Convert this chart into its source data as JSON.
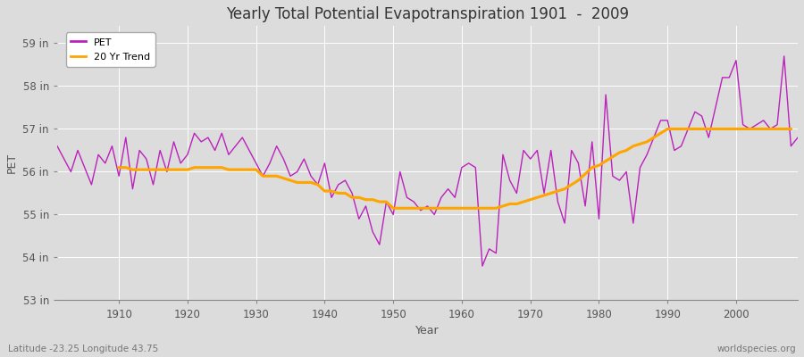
{
  "title": "Yearly Total Potential Evapotranspiration 1901  -  2009",
  "ylabel": "PET",
  "xlabel": "Year",
  "footer_left": "Latitude -23.25 Longitude 43.75",
  "footer_right": "worldspecies.org",
  "pet_color": "#BB22BB",
  "trend_color": "#FFA500",
  "background_color": "#DCDCDC",
  "plot_bg_color": "#DCDCDC",
  "ylim": [
    53.0,
    59.4
  ],
  "yticks": [
    53,
    54,
    55,
    56,
    57,
    58,
    59
  ],
  "ytick_labels": [
    "53 in",
    "54 in",
    "55 in",
    "56 in",
    "57 in",
    "58 in",
    "59 in"
  ],
  "xlim": [
    1901,
    2009
  ],
  "xticks": [
    1910,
    1920,
    1930,
    1940,
    1950,
    1960,
    1970,
    1980,
    1990,
    2000
  ],
  "years": [
    1901,
    1902,
    1903,
    1904,
    1905,
    1906,
    1907,
    1908,
    1909,
    1910,
    1911,
    1912,
    1913,
    1914,
    1915,
    1916,
    1917,
    1918,
    1919,
    1920,
    1921,
    1922,
    1923,
    1924,
    1925,
    1926,
    1927,
    1928,
    1929,
    1930,
    1931,
    1932,
    1933,
    1934,
    1935,
    1936,
    1937,
    1938,
    1939,
    1940,
    1941,
    1942,
    1943,
    1944,
    1945,
    1946,
    1947,
    1948,
    1949,
    1950,
    1951,
    1952,
    1953,
    1954,
    1955,
    1956,
    1957,
    1958,
    1959,
    1960,
    1961,
    1962,
    1963,
    1964,
    1965,
    1966,
    1967,
    1968,
    1969,
    1970,
    1971,
    1972,
    1973,
    1974,
    1975,
    1976,
    1977,
    1978,
    1979,
    1980,
    1981,
    1982,
    1983,
    1984,
    1985,
    1986,
    1987,
    1988,
    1989,
    1990,
    1991,
    1992,
    1993,
    1994,
    1995,
    1996,
    1997,
    1998,
    1999,
    2000,
    2001,
    2002,
    2003,
    2004,
    2005,
    2006,
    2007,
    2008,
    2009
  ],
  "pet": [
    56.6,
    56.3,
    56.0,
    56.5,
    56.1,
    55.7,
    56.4,
    56.2,
    56.6,
    55.9,
    56.8,
    55.6,
    56.5,
    56.3,
    55.7,
    56.5,
    56.0,
    56.7,
    56.2,
    56.4,
    56.9,
    56.7,
    56.8,
    56.5,
    56.9,
    56.4,
    56.6,
    56.8,
    56.5,
    56.2,
    55.9,
    56.2,
    56.6,
    56.3,
    55.9,
    56.0,
    56.3,
    55.9,
    55.7,
    56.2,
    55.4,
    55.7,
    55.8,
    55.5,
    54.9,
    55.2,
    54.6,
    54.3,
    55.3,
    55.0,
    56.0,
    55.4,
    55.3,
    55.1,
    55.2,
    55.0,
    55.4,
    55.6,
    55.4,
    56.1,
    56.2,
    56.1,
    53.8,
    54.2,
    54.1,
    56.4,
    55.8,
    55.5,
    56.5,
    56.3,
    56.5,
    55.5,
    56.5,
    55.3,
    54.8,
    56.5,
    56.2,
    55.2,
    56.7,
    54.9,
    57.8,
    55.9,
    55.8,
    56.0,
    54.8,
    56.1,
    56.4,
    56.8,
    57.2,
    57.2,
    56.5,
    56.6,
    57.0,
    57.4,
    57.3,
    56.8,
    57.5,
    58.2,
    58.2,
    58.6,
    57.1,
    57.0,
    57.1,
    57.2,
    57.0,
    57.1,
    58.7,
    56.6,
    56.8
  ],
  "trend": [
    null,
    null,
    null,
    null,
    null,
    null,
    null,
    null,
    null,
    56.1,
    56.1,
    56.05,
    56.05,
    56.05,
    56.05,
    56.05,
    56.05,
    56.05,
    56.05,
    56.05,
    56.1,
    56.1,
    56.1,
    56.1,
    56.1,
    56.05,
    56.05,
    56.05,
    56.05,
    56.05,
    55.9,
    55.9,
    55.9,
    55.85,
    55.8,
    55.75,
    55.75,
    55.75,
    55.7,
    55.55,
    55.55,
    55.5,
    55.5,
    55.4,
    55.4,
    55.35,
    55.35,
    55.3,
    55.3,
    55.15,
    55.15,
    55.15,
    55.15,
    55.15,
    55.15,
    55.15,
    55.15,
    55.15,
    55.15,
    55.15,
    55.15,
    55.15,
    55.15,
    55.15,
    55.15,
    55.2,
    55.25,
    55.25,
    55.3,
    55.35,
    55.4,
    55.45,
    55.5,
    55.55,
    55.6,
    55.7,
    55.8,
    55.95,
    56.1,
    56.15,
    56.25,
    56.35,
    56.45,
    56.5,
    56.6,
    56.65,
    56.7,
    56.8,
    56.9,
    57.0,
    57.0,
    57.0,
    57.0,
    57.0,
    57.0,
    57.0,
    57.0,
    57.0,
    57.0,
    57.0,
    57.0,
    57.0,
    57.0,
    57.0,
    57.0,
    57.0,
    57.0,
    57.0
  ]
}
